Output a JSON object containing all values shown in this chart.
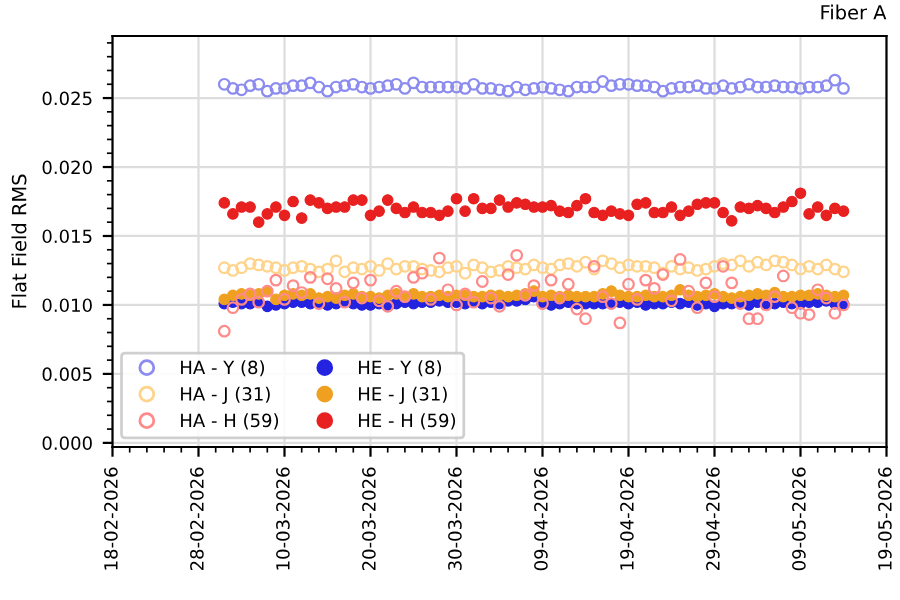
{
  "chart_data": {
    "type": "scatter",
    "title": "Fiber A",
    "ylabel": "Flat Field RMS",
    "marker": "circle",
    "grid": true,
    "legend": "bottom left",
    "x": [
      "2026-03-03",
      "2026-03-04",
      "2026-03-05",
      "2026-03-06",
      "2026-03-07",
      "2026-03-08",
      "2026-03-09",
      "2026-03-10",
      "2026-03-11",
      "2026-03-12",
      "2026-03-13",
      "2026-03-14",
      "2026-03-15",
      "2026-03-16",
      "2026-03-17",
      "2026-03-18",
      "2026-03-19",
      "2026-03-20",
      "2026-03-21",
      "2026-03-22",
      "2026-03-23",
      "2026-03-24",
      "2026-03-25",
      "2026-03-26",
      "2026-03-27",
      "2026-03-28",
      "2026-03-29",
      "2026-03-30",
      "2026-03-31",
      "2026-04-01",
      "2026-04-02",
      "2026-04-03",
      "2026-04-04",
      "2026-04-05",
      "2026-04-06",
      "2026-04-07",
      "2026-04-08",
      "2026-04-09",
      "2026-04-10",
      "2026-04-11",
      "2026-04-12",
      "2026-04-13",
      "2026-04-14",
      "2026-04-15",
      "2026-04-16",
      "2026-04-17",
      "2026-04-18",
      "2026-04-19",
      "2026-04-20",
      "2026-04-21",
      "2026-04-22",
      "2026-04-23",
      "2026-04-24",
      "2026-04-25",
      "2026-04-26",
      "2026-04-27",
      "2026-04-28",
      "2026-04-29",
      "2026-04-30",
      "2026-05-01",
      "2026-05-02",
      "2026-05-03",
      "2026-05-04",
      "2026-05-05",
      "2026-05-06",
      "2026-05-07",
      "2026-05-08",
      "2026-05-09",
      "2026-05-10",
      "2026-05-11",
      "2026-05-12",
      "2026-05-13",
      "2026-05-14"
    ],
    "xlim": [
      "2026-02-18",
      "2026-05-19"
    ],
    "xticks": [
      {
        "value": "2026-02-18",
        "label": "18-02-2026"
      },
      {
        "value": "2026-02-28",
        "label": "28-02-2026"
      },
      {
        "value": "2026-03-10",
        "label": "10-03-2026"
      },
      {
        "value": "2026-03-20",
        "label": "20-03-2026"
      },
      {
        "value": "2026-03-30",
        "label": "30-03-2026"
      },
      {
        "value": "2026-04-09",
        "label": "09-04-2026"
      },
      {
        "value": "2026-04-19",
        "label": "19-04-2026"
      },
      {
        "value": "2026-04-29",
        "label": "29-04-2026"
      },
      {
        "value": "2026-05-09",
        "label": "09-05-2026"
      },
      {
        "value": "2026-05-19",
        "label": "19-05-2026"
      }
    ],
    "ylim": [
      -0.0003,
      0.0295
    ],
    "yticks": [
      {
        "value": 0,
        "label": "0.000"
      },
      {
        "value": 0.005,
        "label": "0.005"
      },
      {
        "value": 0.01,
        "label": "0.010"
      },
      {
        "value": 0.015,
        "label": "0.015"
      },
      {
        "value": 0.02,
        "label": "0.020"
      },
      {
        "value": 0.025,
        "label": "0.025"
      }
    ],
    "series": [
      {
        "name": "HA - Y (8)",
        "color": "#8c8cf0",
        "values": [
          0.026,
          0.0257,
          0.0256,
          0.0259,
          0.026,
          0.0255,
          0.0257,
          0.0257,
          0.0259,
          0.0259,
          0.0261,
          0.0258,
          0.0255,
          0.0258,
          0.0259,
          0.026,
          0.0258,
          0.0257,
          0.0258,
          0.0259,
          0.026,
          0.0257,
          0.0261,
          0.0258,
          0.0258,
          0.0258,
          0.0258,
          0.0258,
          0.0257,
          0.026,
          0.0257,
          0.0257,
          0.0256,
          0.0255,
          0.0258,
          0.0256,
          0.0257,
          0.0258,
          0.0257,
          0.0256,
          0.0255,
          0.0258,
          0.0258,
          0.0258,
          0.0262,
          0.0259,
          0.026,
          0.026,
          0.0259,
          0.0259,
          0.0258,
          0.0255,
          0.0257,
          0.0258,
          0.0258,
          0.0259,
          0.0257,
          0.0257,
          0.0259,
          0.0257,
          0.0258,
          0.026,
          0.0258,
          0.0258,
          0.0259,
          0.0258,
          0.0258,
          0.0257,
          0.0258,
          0.0258,
          0.0259,
          0.0263,
          0.0257
        ]
      },
      {
        "name": "HA - J (31)",
        "color": "#ffd38a",
        "values": [
          0.0127,
          0.0125,
          0.0127,
          0.013,
          0.0129,
          0.0128,
          0.0127,
          0.0125,
          0.0127,
          0.0128,
          0.0126,
          0.0124,
          0.0126,
          0.0132,
          0.0124,
          0.0127,
          0.0126,
          0.0128,
          0.0125,
          0.013,
          0.0126,
          0.0128,
          0.0128,
          0.0126,
          0.0125,
          0.0124,
          0.0127,
          0.0128,
          0.0123,
          0.0129,
          0.0127,
          0.0124,
          0.0125,
          0.0128,
          0.0127,
          0.0126,
          0.0129,
          0.0127,
          0.0126,
          0.0129,
          0.013,
          0.0128,
          0.0131,
          0.0126,
          0.0132,
          0.013,
          0.0127,
          0.0129,
          0.0128,
          0.0128,
          0.0127,
          0.0123,
          0.0128,
          0.0126,
          0.0127,
          0.0125,
          0.0126,
          0.0128,
          0.013,
          0.0129,
          0.0132,
          0.0128,
          0.0131,
          0.0129,
          0.0132,
          0.0131,
          0.0129,
          0.0126,
          0.0128,
          0.0126,
          0.0129,
          0.0126,
          0.0124
        ]
      },
      {
        "name": "HA - H (59)",
        "color": "#ff8a8a",
        "values": [
          0.0081,
          0.0098,
          0.0104,
          0.0108,
          0.0102,
          0.011,
          0.0118,
          0.0104,
          0.0114,
          0.0109,
          0.012,
          0.0101,
          0.0119,
          0.0112,
          0.0102,
          0.0116,
          0.0105,
          0.0118,
          0.0103,
          0.0099,
          0.011,
          0.0106,
          0.012,
          0.0123,
          0.0104,
          0.0134,
          0.0111,
          0.01,
          0.0108,
          0.0102,
          0.0117,
          0.0105,
          0.0099,
          0.0122,
          0.0136,
          0.0107,
          0.0114,
          0.0101,
          0.0118,
          0.0105,
          0.0115,
          0.0097,
          0.009,
          0.0128,
          0.0106,
          0.0101,
          0.0087,
          0.0115,
          0.0104,
          0.0118,
          0.0112,
          0.0122,
          0.0103,
          0.0133,
          0.011,
          0.0098,
          0.0116,
          0.0106,
          0.0128,
          0.0116,
          0.0101,
          0.009,
          0.009,
          0.01,
          0.0106,
          0.0121,
          0.0098,
          0.0094,
          0.0093,
          0.0111,
          0.0105,
          0.0094,
          0.01
        ]
      },
      {
        "name": "HE - Y (8)",
        "color": "#2323e0",
        "values": [
          0.0101,
          0.0102,
          0.0101,
          0.0101,
          0.0102,
          0.0099,
          0.01,
          0.0101,
          0.0102,
          0.0102,
          0.0101,
          0.0101,
          0.01,
          0.0101,
          0.0102,
          0.0101,
          0.01,
          0.01,
          0.0101,
          0.01,
          0.0101,
          0.0102,
          0.0101,
          0.0102,
          0.0102,
          0.0103,
          0.0102,
          0.0102,
          0.0101,
          0.0102,
          0.0101,
          0.0102,
          0.0101,
          0.0103,
          0.0103,
          0.0104,
          0.0106,
          0.0101,
          0.01,
          0.0101,
          0.0102,
          0.0101,
          0.0101,
          0.0101,
          0.0101,
          0.0101,
          0.0102,
          0.0101,
          0.0102,
          0.01,
          0.0101,
          0.0101,
          0.0102,
          0.0101,
          0.0102,
          0.01,
          0.0101,
          0.0099,
          0.0101,
          0.0101,
          0.0102,
          0.01,
          0.0102,
          0.0101,
          0.0101,
          0.0102,
          0.0101,
          0.0101,
          0.0102,
          0.0102,
          0.0103,
          0.0101,
          0.0101
        ]
      },
      {
        "name": "HE - J (31)",
        "color": "#f0a020",
        "values": [
          0.0104,
          0.0107,
          0.0108,
          0.0107,
          0.0108,
          0.011,
          0.0104,
          0.0107,
          0.0108,
          0.0107,
          0.0108,
          0.0105,
          0.0106,
          0.0105,
          0.0107,
          0.0108,
          0.0106,
          0.0106,
          0.0105,
          0.0107,
          0.0108,
          0.0106,
          0.0108,
          0.0106,
          0.0106,
          0.0107,
          0.0106,
          0.0107,
          0.0107,
          0.0106,
          0.0106,
          0.0107,
          0.0107,
          0.0106,
          0.0107,
          0.0108,
          0.011,
          0.0106,
          0.0107,
          0.0106,
          0.0107,
          0.0106,
          0.0106,
          0.0106,
          0.0108,
          0.011,
          0.0107,
          0.0106,
          0.0106,
          0.0107,
          0.0106,
          0.0106,
          0.0107,
          0.0111,
          0.0107,
          0.0106,
          0.0107,
          0.0108,
          0.0106,
          0.0105,
          0.0106,
          0.0107,
          0.0108,
          0.0107,
          0.0109,
          0.0106,
          0.0106,
          0.0107,
          0.0107,
          0.0108,
          0.0107,
          0.0106,
          0.0107
        ]
      },
      {
        "name": "HE - H (59)",
        "color": "#e82020",
        "values": [
          0.0174,
          0.0166,
          0.0171,
          0.0171,
          0.016,
          0.0166,
          0.0171,
          0.0165,
          0.0175,
          0.0163,
          0.0176,
          0.0174,
          0.017,
          0.0171,
          0.0171,
          0.0176,
          0.0176,
          0.0165,
          0.0168,
          0.0176,
          0.017,
          0.0167,
          0.0171,
          0.0167,
          0.0167,
          0.0165,
          0.0168,
          0.0177,
          0.0168,
          0.0177,
          0.017,
          0.017,
          0.0176,
          0.0171,
          0.0174,
          0.0173,
          0.0171,
          0.0171,
          0.0172,
          0.0168,
          0.0167,
          0.0172,
          0.0177,
          0.0167,
          0.0165,
          0.0168,
          0.0166,
          0.0165,
          0.0173,
          0.0174,
          0.0167,
          0.0167,
          0.0171,
          0.0165,
          0.0168,
          0.0173,
          0.0174,
          0.0174,
          0.0167,
          0.0161,
          0.0171,
          0.017,
          0.0172,
          0.017,
          0.0167,
          0.0171,
          0.0175,
          0.0181,
          0.0166,
          0.0171,
          0.0165,
          0.017,
          0.0168
        ]
      }
    ]
  }
}
